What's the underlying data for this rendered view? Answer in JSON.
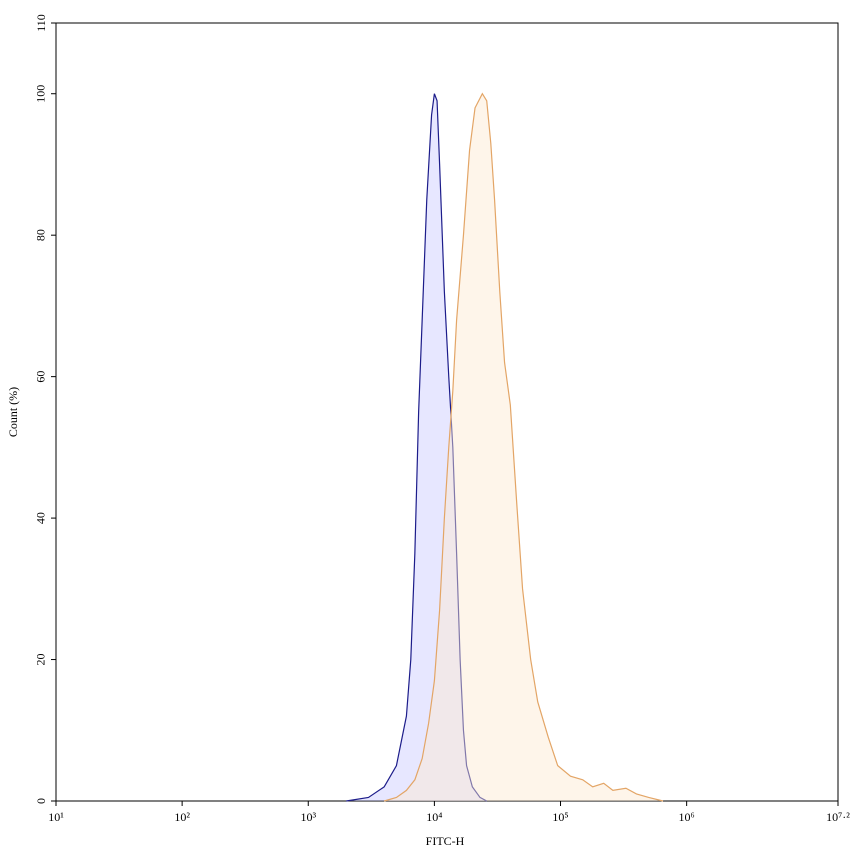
{
  "chart_data": {
    "type": "histogram-overlay",
    "xlabel": "FITC-H",
    "ylabel": "Count  (%)",
    "xscale": "log",
    "xlim": [
      10,
      15848931.92
    ],
    "xticks": [
      {
        "value": 10,
        "label": "10¹"
      },
      {
        "value": 100,
        "label": "10²"
      },
      {
        "value": 1000,
        "label": "10³"
      },
      {
        "value": 10000,
        "label": "10⁴"
      },
      {
        "value": 100000,
        "label": "10⁵"
      },
      {
        "value": 1000000,
        "label": "10⁶"
      },
      {
        "value": 15848931.92,
        "label": "10⁷·²"
      }
    ],
    "ylim": [
      0,
      110
    ],
    "yticks": [
      0,
      20,
      40,
      60,
      80,
      100,
      110
    ],
    "series": [
      {
        "color": "#1c1c8a",
        "fill": "rgba(185,185,255,0.35)",
        "x": [
          2000,
          3000,
          4000,
          5000,
          6000,
          6500,
          7000,
          7500,
          8000,
          8700,
          9500,
          10000,
          10500,
          11000,
          12000,
          13000,
          14000,
          15000,
          16000,
          17000,
          18000,
          20000,
          23000,
          26000
        ],
        "values": [
          0,
          0.5,
          2,
          5,
          12,
          20,
          35,
          55,
          68,
          85,
          97,
          100,
          99,
          90,
          72,
          60,
          50,
          35,
          20,
          10,
          5,
          2,
          0.5,
          0
        ]
      },
      {
        "color": "#e3a566",
        "fill": "rgba(253,232,208,0.45)",
        "x": [
          4000,
          5000,
          6000,
          7000,
          8000,
          9000,
          10000,
          11000,
          12000,
          13000,
          14000,
          15000,
          17000,
          19000,
          21000,
          24000,
          26000,
          28000,
          30000,
          33000,
          36000,
          40000,
          45000,
          50000,
          58000,
          66000,
          80000,
          95000,
          120000,
          150000,
          180000,
          220000,
          260000,
          330000,
          400000,
          500000,
          650000
        ],
        "values": [
          0,
          0.5,
          1.5,
          3,
          6,
          11,
          17,
          27,
          40,
          50,
          58,
          68,
          80,
          92,
          98,
          100,
          99,
          93,
          85,
          72,
          62,
          56,
          42,
          30,
          20,
          14,
          9,
          5,
          3.5,
          3,
          2,
          2.5,
          1.5,
          1.8,
          1,
          0.5,
          0
        ]
      }
    ]
  }
}
